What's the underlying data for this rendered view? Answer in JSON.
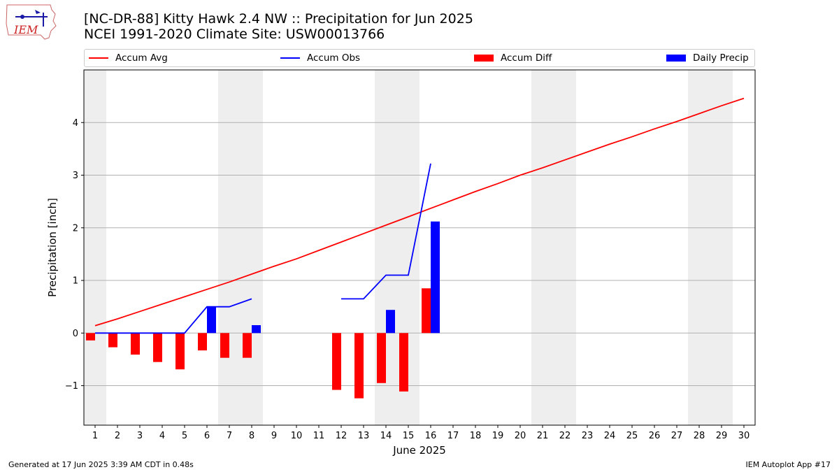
{
  "header": {
    "logo_text": "IEM",
    "title_line1": "[NC-DR-88] Kitty Hawk 2.4 NW :: Precipitation for Jun 2025",
    "title_line2": "NCEI 1991-2020 Climate Site: USW00013766"
  },
  "footer": {
    "generated": "Generated at 17 Jun 2025 3:39 AM CDT in 0.48s",
    "app": "IEM Autoplot App #17"
  },
  "colors": {
    "avg": "#ff0000",
    "obs": "#0000ff",
    "diff": "#ff0000",
    "daily": "#0000ff",
    "weekend_shade": "#eeeeee",
    "grid": "#b0b0b0"
  },
  "chart_data": {
    "type": "bar",
    "title": "[NC-DR-88] Kitty Hawk 2.4 NW :: Precipitation for Jun 2025",
    "subtitle": "NCEI 1991-2020 Climate Site: USW00013766",
    "xlabel": "June 2025",
    "ylabel": "Precipitation [inch]",
    "xlim": [
      0.5,
      30.5
    ],
    "ylim": [
      -1.75,
      5.0
    ],
    "yticks": [
      -1,
      0,
      1,
      2,
      3,
      4
    ],
    "ytick_labels": [
      "−1",
      "0",
      "1",
      "2",
      "3",
      "4"
    ],
    "grid": "horizontal",
    "legend_position": "top",
    "categories": [
      1,
      2,
      3,
      4,
      5,
      6,
      7,
      8,
      9,
      10,
      11,
      12,
      13,
      14,
      15,
      16,
      17,
      18,
      19,
      20,
      21,
      22,
      23,
      24,
      25,
      26,
      27,
      28,
      29,
      30
    ],
    "shaded_days": [
      [
        0.5,
        1.5
      ],
      [
        6.5,
        8.5
      ],
      [
        13.5,
        15.5
      ],
      [
        20.5,
        22.5
      ],
      [
        27.5,
        29.5
      ]
    ],
    "series": [
      {
        "name": "Accum Avg",
        "kind": "line",
        "x": [
          1,
          2,
          3,
          4,
          5,
          6,
          7,
          8,
          9,
          10,
          11,
          12,
          13,
          14,
          15,
          16,
          17,
          18,
          19,
          20,
          21,
          22,
          23,
          24,
          25,
          26,
          27,
          28,
          29,
          30
        ],
        "values": [
          0.14,
          0.27,
          0.41,
          0.55,
          0.69,
          0.83,
          0.97,
          1.12,
          1.27,
          1.41,
          1.57,
          1.73,
          1.89,
          2.05,
          2.21,
          2.37,
          2.53,
          2.69,
          2.84,
          3.0,
          3.14,
          3.29,
          3.44,
          3.59,
          3.73,
          3.88,
          4.02,
          4.17,
          4.32,
          4.46
        ]
      },
      {
        "name": "Accum Obs",
        "kind": "line",
        "segments": [
          {
            "x": [
              1,
              2,
              3,
              4,
              5,
              6,
              7,
              8
            ],
            "values": [
              0.0,
              0.0,
              0.0,
              0.0,
              0.0,
              0.5,
              0.5,
              0.65
            ]
          },
          {
            "x": [
              12,
              13,
              14,
              15,
              16
            ],
            "values": [
              0.65,
              0.65,
              1.1,
              1.1,
              3.22
            ]
          }
        ]
      },
      {
        "name": "Accum Diff",
        "kind": "bar",
        "x": [
          1,
          2,
          3,
          4,
          5,
          6,
          7,
          8,
          12,
          13,
          14,
          15,
          16
        ],
        "values": [
          -0.14,
          -0.27,
          -0.41,
          -0.55,
          -0.69,
          -0.33,
          -0.47,
          -0.47,
          -1.08,
          -1.24,
          -0.95,
          -1.11,
          0.85
        ]
      },
      {
        "name": "Daily Precip",
        "kind": "bar",
        "x": [
          6,
          8,
          14,
          16
        ],
        "values": [
          0.5,
          0.15,
          0.44,
          2.12
        ]
      }
    ]
  }
}
